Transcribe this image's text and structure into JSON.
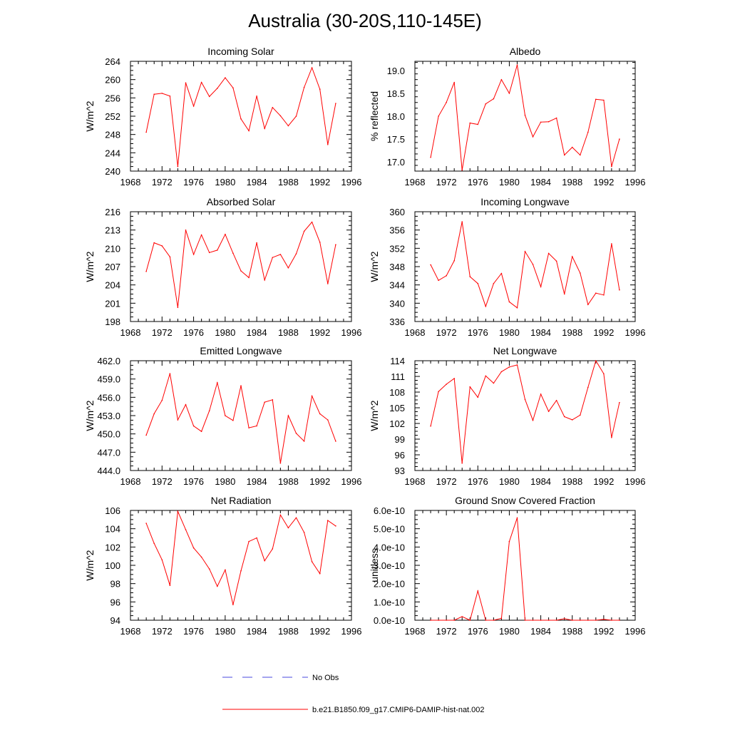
{
  "page": {
    "title": "Australia (30-20S,110-145E)",
    "legend": [
      {
        "label": "No Obs",
        "color": "#4a4adf",
        "dash": true
      },
      {
        "label": "b.e21.B1850.f09_g17.CMIP6-DAMIP-hist-nat.002",
        "color": "#ff0000",
        "dash": false
      }
    ]
  },
  "chart_data": [
    {
      "type": "line",
      "title": "Incoming Solar",
      "ylabel": "W/m^2",
      "xlim": [
        1968,
        1996
      ],
      "xticks": [
        "1968",
        "1972",
        "1976",
        "1980",
        "1984",
        "1988",
        "1992",
        "1996"
      ],
      "ylim": [
        240,
        264
      ],
      "yticks": [
        "240",
        "244",
        "248",
        "252",
        "256",
        "260",
        "264"
      ],
      "series": [
        {
          "color": "#ff0000",
          "x": [
            1970,
            1971,
            1972,
            1973,
            1974,
            1975,
            1976,
            1977,
            1978,
            1979,
            1980,
            1981,
            1982,
            1983,
            1984,
            1985,
            1986,
            1987,
            1988,
            1989,
            1990,
            1991,
            1992,
            1993,
            1994
          ],
          "y": [
            248.5,
            256.8,
            257.0,
            256.4,
            241.0,
            259.3,
            254.2,
            259.4,
            256.3,
            258.1,
            260.4,
            258.2,
            251.4,
            248.8,
            256.4,
            249.3,
            253.9,
            252.1,
            249.9,
            252.0,
            258.3,
            262.6,
            257.9,
            245.8,
            254.8
          ]
        }
      ]
    },
    {
      "type": "line",
      "title": "Albedo",
      "ylabel": "% reflected",
      "xlim": [
        1968,
        1996
      ],
      "xticks": [
        "1968",
        "1972",
        "1976",
        "1980",
        "1984",
        "1988",
        "1992",
        "1996"
      ],
      "ylim": [
        16.8,
        19.2
      ],
      "yticks": [
        "17.0",
        "17.5",
        "18.0",
        "18.5",
        "19.0"
      ],
      "series": [
        {
          "color": "#ff0000",
          "x": [
            1970,
            1971,
            1972,
            1973,
            1974,
            1975,
            1976,
            1977,
            1978,
            1979,
            1980,
            1981,
            1982,
            1983,
            1984,
            1985,
            1986,
            1987,
            1988,
            1989,
            1990,
            1991,
            1992,
            1993,
            1994
          ],
          "y": [
            17.1,
            18.0,
            18.3,
            18.74,
            16.82,
            17.85,
            17.82,
            18.27,
            18.38,
            18.8,
            18.5,
            19.12,
            18.02,
            17.55,
            17.87,
            17.88,
            17.96,
            17.15,
            17.32,
            17.15,
            17.65,
            18.37,
            18.35,
            16.9,
            17.5
          ]
        }
      ]
    },
    {
      "type": "line",
      "title": "Absorbed Solar",
      "ylabel": "W/m^2",
      "xlim": [
        1968,
        1996
      ],
      "xticks": [
        "1968",
        "1972",
        "1976",
        "1980",
        "1984",
        "1988",
        "1992",
        "1996"
      ],
      "ylim": [
        198,
        216
      ],
      "yticks": [
        "198",
        "201",
        "204",
        "207",
        "210",
        "213",
        "216"
      ],
      "series": [
        {
          "color": "#ff0000",
          "x": [
            1970,
            1971,
            1972,
            1973,
            1974,
            1975,
            1976,
            1977,
            1978,
            1979,
            1980,
            1981,
            1982,
            1983,
            1984,
            1985,
            1986,
            1987,
            1988,
            1989,
            1990,
            1991,
            1992,
            1993,
            1994
          ],
          "y": [
            206.2,
            210.9,
            210.4,
            208.6,
            200.3,
            213.0,
            209.0,
            212.2,
            209.3,
            209.7,
            212.3,
            209.2,
            206.3,
            205.2,
            210.9,
            204.8,
            208.5,
            209.0,
            206.8,
            209.1,
            212.8,
            214.3,
            211.0,
            204.2,
            210.6
          ]
        }
      ]
    },
    {
      "type": "line",
      "title": "Incoming Longwave",
      "ylabel": "W/m^2",
      "xlim": [
        1968,
        1996
      ],
      "xticks": [
        "1968",
        "1972",
        "1976",
        "1980",
        "1984",
        "1988",
        "1992",
        "1996"
      ],
      "ylim": [
        336,
        360
      ],
      "yticks": [
        "336",
        "340",
        "344",
        "348",
        "352",
        "356",
        "360"
      ],
      "series": [
        {
          "color": "#ff0000",
          "x": [
            1970,
            1971,
            1972,
            1973,
            1974,
            1975,
            1976,
            1977,
            1978,
            1979,
            1980,
            1981,
            1982,
            1983,
            1984,
            1985,
            1986,
            1987,
            1988,
            1989,
            1990,
            1991,
            1992,
            1993,
            1994
          ],
          "y": [
            348.4,
            345.0,
            346.0,
            349.3,
            357.8,
            345.8,
            344.3,
            339.3,
            344.3,
            346.5,
            340.3,
            339.0,
            351.3,
            348.5,
            343.6,
            350.9,
            349.2,
            342.0,
            350.2,
            346.6,
            339.7,
            342.2,
            341.8,
            353.0,
            342.9
          ]
        }
      ]
    },
    {
      "type": "line",
      "title": "Emitted Longwave",
      "ylabel": "W/m^2",
      "xlim": [
        1968,
        1996
      ],
      "xticks": [
        "1968",
        "1972",
        "1976",
        "1980",
        "1984",
        "1988",
        "1992",
        "1996"
      ],
      "ylim": [
        444,
        462
      ],
      "yticks": [
        "444.0",
        "447.0",
        "450.0",
        "453.0",
        "456.0",
        "459.0",
        "462.0"
      ],
      "series": [
        {
          "color": "#ff0000",
          "x": [
            1970,
            1971,
            1972,
            1973,
            1974,
            1975,
            1976,
            1977,
            1978,
            1979,
            1980,
            1981,
            1982,
            1983,
            1984,
            1985,
            1986,
            1987,
            1988,
            1989,
            1990,
            1991,
            1992,
            1993,
            1994
          ],
          "y": [
            449.8,
            453.3,
            455.5,
            459.9,
            452.3,
            454.8,
            451.3,
            450.4,
            453.8,
            458.4,
            453.0,
            452.2,
            457.9,
            451.0,
            451.3,
            455.2,
            455.6,
            445.2,
            453.0,
            450.1,
            448.8,
            456.2,
            453.3,
            452.3,
            448.8
          ]
        }
      ]
    },
    {
      "type": "line",
      "title": "Net Longwave",
      "ylabel": "W/m^2",
      "xlim": [
        1968,
        1996
      ],
      "xticks": [
        "1968",
        "1972",
        "1976",
        "1980",
        "1984",
        "1988",
        "1992",
        "1996"
      ],
      "ylim": [
        93,
        114
      ],
      "yticks": [
        "93",
        "96",
        "99",
        "102",
        "105",
        "108",
        "111",
        "114"
      ],
      "series": [
        {
          "color": "#ff0000",
          "x": [
            1970,
            1971,
            1972,
            1973,
            1974,
            1975,
            1976,
            1977,
            1978,
            1979,
            1980,
            1981,
            1982,
            1983,
            1984,
            1985,
            1986,
            1987,
            1988,
            1989,
            1990,
            1991,
            1992,
            1993,
            1994
          ],
          "y": [
            101.5,
            108.1,
            109.5,
            110.6,
            94.4,
            109.0,
            107.0,
            111.1,
            109.7,
            111.9,
            112.8,
            113.2,
            106.6,
            102.6,
            107.6,
            104.3,
            106.4,
            103.3,
            102.7,
            103.6,
            108.9,
            114.0,
            111.5,
            99.3,
            106.0
          ]
        }
      ]
    },
    {
      "type": "line",
      "title": "Net Radiation",
      "ylabel": "W/m^2",
      "xlim": [
        1968,
        1996
      ],
      "xticks": [
        "1968",
        "1972",
        "1976",
        "1980",
        "1984",
        "1988",
        "1992",
        "1996"
      ],
      "ylim": [
        94,
        106
      ],
      "yticks": [
        "94",
        "96",
        "98",
        "100",
        "102",
        "104",
        "106"
      ],
      "series": [
        {
          "color": "#ff0000",
          "x": [
            1970,
            1971,
            1972,
            1973,
            1974,
            1975,
            1976,
            1977,
            1978,
            1979,
            1980,
            1981,
            1982,
            1983,
            1984,
            1985,
            1986,
            1987,
            1988,
            1989,
            1990,
            1991,
            1992,
            1993,
            1994
          ],
          "y": [
            104.6,
            102.4,
            100.6,
            97.8,
            105.9,
            103.9,
            101.9,
            100.9,
            99.6,
            97.7,
            99.5,
            95.7,
            99.4,
            102.6,
            103.0,
            100.5,
            101.8,
            105.5,
            104.1,
            105.2,
            103.6,
            100.4,
            99.1,
            104.9,
            104.3
          ]
        }
      ]
    },
    {
      "type": "line",
      "title": "Ground Snow Covered Fraction",
      "ylabel": "unitless",
      "xlim": [
        1968,
        1996
      ],
      "xticks": [
        "1968",
        "1972",
        "1976",
        "1980",
        "1984",
        "1988",
        "1992",
        "1996"
      ],
      "ylim": [
        0,
        6e-10
      ],
      "yticks": [
        "0.0e-10",
        "1.0e-10",
        "2.0e-10",
        "3.0e-10",
        "4.0e-10",
        "5.0e-10",
        "6.0e-10"
      ],
      "series": [
        {
          "color": "#ff0000",
          "x": [
            1970,
            1971,
            1972,
            1973,
            1974,
            1975,
            1976,
            1977,
            1978,
            1979,
            1980,
            1981,
            1982,
            1983,
            1984,
            1985,
            1986,
            1987,
            1988,
            1989,
            1990,
            1991,
            1992,
            1993,
            1994
          ],
          "y": [
            0,
            0,
            0,
            0,
            2e-11,
            0,
            1.6e-10,
            0,
            0,
            1e-11,
            4.3e-10,
            5.6e-10,
            0,
            0,
            0,
            0,
            0,
            8e-12,
            0,
            0,
            0,
            0,
            5e-12,
            0,
            0
          ]
        }
      ]
    }
  ]
}
